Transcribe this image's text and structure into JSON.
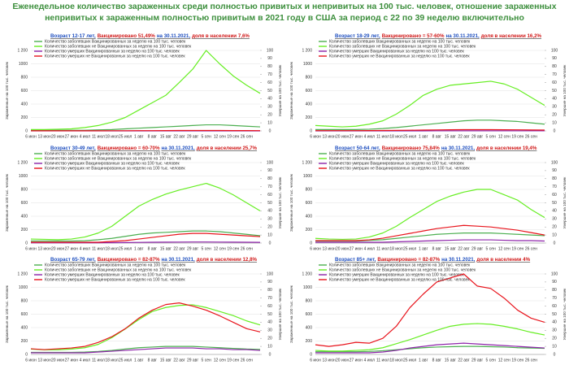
{
  "title": "Еженедельное количество зараженных среди полностью привитых и непривитых на 100 тыс. человек, отношение зараженных непривитых к зараженным полностью привитым в 2021 году в США за период с 22 по 39 неделю включительно",
  "chart_data": [
    {
      "type": "line",
      "subtitle": [
        {
          "text": "Возраст 12-17 лет,",
          "color": "#1f4fbf"
        },
        {
          "text": "Вакцинировано 51,49%",
          "color": "#d01818"
        },
        {
          "text": "на 30.11.2021,",
          "color": "#1f4fbf"
        },
        {
          "text": "доля в населении 7,6%",
          "color": "#d01818"
        }
      ],
      "ylabel": "Зараженные на 100 тыс. человек",
      "y2label": "Умершие на 100 тыс. человек",
      "categories": [
        "6 июн",
        "13 июн",
        "20 июн",
        "27 июн",
        "4 июл",
        "11 июл",
        "18 июл",
        "25 июл",
        "1 авг",
        "8 авг",
        "15 авг",
        "22 авг",
        "29 авг",
        "5 сен",
        "12 сен",
        "19 сен",
        "26 сен",
        null
      ],
      "ylim": [
        0,
        1200
      ],
      "yticks": [
        0,
        200,
        400,
        600,
        800,
        1000,
        {
          "value": 1200,
          "label": "1 200"
        }
      ],
      "y2lim": [
        0,
        100
      ],
      "y2ticks": [
        0,
        10,
        20,
        30,
        40,
        50,
        60,
        70,
        80,
        90,
        100
      ],
      "grid": true,
      "series": [
        {
          "name": "Количество заболевших Вакцинированных за неделю на 100 тыс. человек",
          "color": "#4caf50",
          "values": [
            10,
            10,
            10,
            10,
            10,
            15,
            20,
            30,
            40,
            50,
            60,
            70,
            80,
            90,
            90,
            80,
            70,
            60
          ]
        },
        {
          "name": "Количество заболевших не Вакцинированных за неделю на 100 тыс. человек",
          "color": "#66ee22",
          "values": [
            20,
            20,
            25,
            30,
            50,
            80,
            130,
            200,
            310,
            420,
            530,
            720,
            920,
            1200,
            1000,
            820,
            680,
            560
          ]
        },
        {
          "name": "Количество умерших Вакцинированных за неделю на 100 тыс. человек",
          "color": "#8e24aa",
          "axis": "y2",
          "values": [
            0,
            0,
            0,
            0,
            0,
            0,
            0,
            0,
            0,
            0,
            0,
            0,
            0,
            0,
            0,
            0,
            0,
            0
          ]
        },
        {
          "name": "Количество умерших не Вакцинированных за неделю на 100 тыс. человек",
          "color": "#e8141c",
          "axis": "y2",
          "values": [
            0.1,
            0.1,
            0.1,
            0.1,
            0.1,
            0.1,
            0.2,
            0.2,
            0.3,
            0.3,
            0.4,
            0.5,
            0.5,
            0.5,
            0.5,
            0.4,
            0.4,
            0.3
          ]
        }
      ]
    },
    {
      "type": "line",
      "subtitle": [
        {
          "text": "Возраст 18-29 лет,",
          "color": "#1f4fbf"
        },
        {
          "text": "Вакцинировано = 57-60%",
          "color": "#d01818"
        },
        {
          "text": "на 30.11.2021,",
          "color": "#1f4fbf"
        },
        {
          "text": "доля в населении 16,2%",
          "color": "#d01818"
        }
      ],
      "ylabel": "Зараженные на 100 тыс. человек",
      "y2label": "Умершие на 100 тыс. человек",
      "categories": [
        "6 июн",
        "13 июн",
        "20 июн",
        "27 июн",
        "4 июл",
        "11 июл",
        "18 июл",
        "25 июл",
        "1 авг",
        "8 авг",
        "15 авг",
        "22 авг",
        "29 авг",
        "5 сен",
        "12 сен",
        "19 сен",
        "26 сен",
        null
      ],
      "ylim": [
        0,
        1200
      ],
      "yticks": [
        0,
        200,
        400,
        600,
        800,
        1000,
        {
          "value": 1200,
          "label": "1 200"
        }
      ],
      "y2lim": [
        0,
        100
      ],
      "y2ticks": [
        0,
        10,
        20,
        30,
        40,
        50,
        60,
        70,
        80,
        90,
        100
      ],
      "grid": true,
      "series": [
        {
          "name": "Количество заболевших Вакцинированных за неделю на 100 тыс. человек",
          "color": "#4caf50",
          "values": [
            20,
            20,
            20,
            20,
            25,
            35,
            50,
            70,
            90,
            110,
            130,
            150,
            160,
            160,
            150,
            140,
            120,
            100
          ]
        },
        {
          "name": "Количество заболевших не Вакцинированных за неделю на 100 тыс. человек",
          "color": "#66ee22",
          "values": [
            80,
            70,
            60,
            70,
            100,
            150,
            250,
            380,
            530,
            620,
            680,
            700,
            720,
            740,
            700,
            620,
            500,
            380
          ]
        },
        {
          "name": "Количество умерших Вакцинированных за неделю на 100 тыс. человек",
          "color": "#8e24aa",
          "axis": "y2",
          "values": [
            0,
            0,
            0,
            0,
            0,
            0,
            0,
            0,
            0,
            0.1,
            0.1,
            0.1,
            0.1,
            0.1,
            0.1,
            0.1,
            0.1,
            0.1
          ]
        },
        {
          "name": "Количество умерших не Вакцинированных за неделю на 100 тыс. человек",
          "color": "#e8141c",
          "axis": "y2",
          "values": [
            0.3,
            0.3,
            0.3,
            0.3,
            0.4,
            0.5,
            0.6,
            0.8,
            1,
            1.2,
            1.4,
            1.5,
            1.5,
            1.5,
            1.4,
            1.3,
            1.1,
            1
          ]
        }
      ]
    },
    {
      "type": "line",
      "subtitle": [
        {
          "text": "Возраст 30-49 лет,",
          "color": "#1f4fbf"
        },
        {
          "text": "Вакцинировано = 60-70%",
          "color": "#d01818"
        },
        {
          "text": "на 30.11.2021,",
          "color": "#1f4fbf"
        },
        {
          "text": "доля в населении 25,7%",
          "color": "#d01818"
        }
      ],
      "ylabel": "Зараженные на 100 тыс. человек",
      "y2label": "Умершие на 100 тыс. человек",
      "categories": [
        "6 июн",
        "13 июн",
        "20 июн",
        "27 июн",
        "4 июл",
        "11 июл",
        "18 июл",
        "25 июл",
        "1 авг",
        "8 авг",
        "15 авг",
        "22 авг",
        "29 авг",
        "5 сен",
        "12 сен",
        "19 сен",
        "26 сен",
        null
      ],
      "ylim": [
        0,
        1200
      ],
      "yticks": [
        0,
        200,
        400,
        600,
        800,
        1000,
        {
          "value": 1200,
          "label": "1 200"
        }
      ],
      "y2lim": [
        0,
        100
      ],
      "y2ticks": [
        0,
        10,
        20,
        30,
        40,
        50,
        60,
        70,
        80,
        90,
        100
      ],
      "grid": true,
      "series": [
        {
          "name": "Количество заболевших Вакцинированных за неделю на 100 тыс. человек",
          "color": "#4caf50",
          "values": [
            30,
            30,
            30,
            30,
            35,
            50,
            70,
            100,
            130,
            150,
            160,
            170,
            180,
            180,
            170,
            150,
            130,
            110
          ]
        },
        {
          "name": "Количество заболевших не Вакцинированных за неделю на 100 тыс. человек",
          "color": "#66ee22",
          "values": [
            60,
            55,
            50,
            60,
            90,
            150,
            250,
            400,
            550,
            650,
            730,
            790,
            840,
            890,
            820,
            720,
            600,
            480
          ]
        },
        {
          "name": "Количество умерших Вакцинированных за неделю на 100 тыс. человек",
          "color": "#8e24aa",
          "axis": "y2",
          "values": [
            0.3,
            0.3,
            0.3,
            0.3,
            0.3,
            0.4,
            0.5,
            0.6,
            0.8,
            1,
            1.1,
            1.2,
            1.3,
            1.3,
            1.2,
            1.1,
            1,
            0.9
          ]
        },
        {
          "name": "Количество умерших не Вакцинированных за неделю на 100 тыс. человек",
          "color": "#e8141c",
          "axis": "y2",
          "values": [
            1,
            1,
            1,
            1,
            1,
            1,
            2,
            3,
            5,
            7,
            9,
            11,
            12,
            12,
            11,
            10,
            9,
            8
          ]
        }
      ]
    },
    {
      "type": "line",
      "subtitle": [
        {
          "text": "Возраст 50-64 лет,",
          "color": "#1f4fbf"
        },
        {
          "text": "Вакцинировано 75,84%",
          "color": "#d01818"
        },
        {
          "text": "на 30.11.2021,",
          "color": "#1f4fbf"
        },
        {
          "text": "доля в населении 19,4%",
          "color": "#d01818"
        }
      ],
      "ylabel": "Зараженные на 100 тыс. человек",
      "y2label": "Умершие на 100 тыс. человек",
      "categories": [
        "6 июн",
        "13 июн",
        "20 июн",
        "27 июн",
        "4 июл",
        "11 июл",
        "18 июл",
        "25 июл",
        "1 авг",
        "8 авг",
        "15 авг",
        "22 авг",
        "29 авг",
        "5 сен",
        "12 сен",
        "19 сен",
        "26 сен",
        null
      ],
      "ylim": [
        0,
        1200
      ],
      "yticks": [
        0,
        200,
        400,
        600,
        800,
        1000,
        {
          "value": 1200,
          "label": "1 200"
        }
      ],
      "y2lim": [
        0,
        100
      ],
      "y2ticks": [
        0,
        10,
        20,
        30,
        40,
        50,
        60,
        70,
        80,
        90,
        100
      ],
      "grid": true,
      "series": [
        {
          "name": "Количество заболевших Вакцинированных за неделю на 100 тыс. человек",
          "color": "#4caf50",
          "values": [
            30,
            30,
            30,
            30,
            40,
            50,
            70,
            90,
            110,
            130,
            140,
            150,
            150,
            150,
            140,
            130,
            120,
            110
          ]
        },
        {
          "name": "Количество заболевших не Вакцинированных за неделю на 100 тыс. человек",
          "color": "#66ee22",
          "values": [
            70,
            60,
            55,
            60,
            90,
            150,
            250,
            380,
            500,
            620,
            700,
            760,
            800,
            800,
            720,
            640,
            500,
            380
          ]
        },
        {
          "name": "Количество умерших Вакцинированных за неделю на 100 тыс. человек",
          "color": "#8e24aa",
          "axis": "y2",
          "values": [
            1,
            1,
            1,
            1,
            1,
            1,
            1.5,
            2,
            2.5,
            3,
            3.5,
            4,
            4,
            4,
            3.5,
            3,
            3,
            2.5
          ]
        },
        {
          "name": "Количество умерших не Вакцинированных за неделю на 100 тыс. человек",
          "color": "#e8141c",
          "axis": "y2",
          "values": [
            3,
            3,
            3,
            3,
            4,
            6,
            9,
            12,
            15,
            18,
            20,
            22,
            21,
            20,
            18,
            16,
            13,
            10
          ]
        }
      ]
    },
    {
      "type": "line",
      "subtitle": [
        {
          "text": "Возраст 65-79 лет,",
          "color": "#1f4fbf"
        },
        {
          "text": "Вакцинировано = 82-87%",
          "color": "#d01818"
        },
        {
          "text": "на 30.11.2021,",
          "color": "#1f4fbf"
        },
        {
          "text": "доля в населении 12,8%",
          "color": "#d01818"
        }
      ],
      "ylabel": "Зараженные на 100 тыс. человек",
      "y2label": "Умершие на 100 тыс. человек",
      "categories": [
        "6 июн",
        "13 июн",
        "20 июн",
        "27 июн",
        "4 июл",
        "11 июл",
        "18 июл",
        "25 июл",
        "1 авг",
        "8 авг",
        "15 авг",
        "22 авг",
        "29 авг",
        "5 сен",
        "12 сен",
        "19 сен",
        "26 сен",
        null
      ],
      "ylim": [
        0,
        1200
      ],
      "yticks": [
        0,
        200,
        400,
        600,
        800,
        1000,
        {
          "value": 1200,
          "label": "1 200"
        }
      ],
      "y2lim": [
        0,
        100
      ],
      "y2ticks": [
        0,
        10,
        20,
        30,
        40,
        50,
        60,
        70,
        80,
        90,
        100
      ],
      "grid": true,
      "series": [
        {
          "name": "Количество заболевших Вакцинированных за неделю на 100 тыс. человек",
          "color": "#4caf50",
          "values": [
            30,
            30,
            30,
            30,
            35,
            45,
            60,
            80,
            100,
            110,
            120,
            120,
            120,
            110,
            100,
            90,
            80,
            75
          ]
        },
        {
          "name": "Количество заболевших не Вакцинированных за неделю на 100 тыс. человек",
          "color": "#66ee22",
          "values": [
            80,
            70,
            70,
            80,
            100,
            150,
            250,
            380,
            520,
            640,
            700,
            730,
            740,
            700,
            640,
            580,
            500,
            440
          ]
        },
        {
          "name": "Количество умерших Вакцинированных за неделю на 100 тыс. человек",
          "color": "#8e24aa",
          "axis": "y2",
          "values": [
            2,
            2,
            2,
            2,
            2,
            3,
            4,
            5,
            6,
            7,
            8,
            8,
            8,
            7,
            7,
            6,
            6,
            5
          ]
        },
        {
          "name": "Количество умерших не Вакцинированных за неделю на 100 тыс. человек",
          "color": "#e8141c",
          "axis": "y2",
          "values": [
            7,
            6,
            7,
            8,
            10,
            15,
            22,
            32,
            45,
            55,
            62,
            64,
            60,
            55,
            48,
            40,
            32,
            28
          ]
        }
      ]
    },
    {
      "type": "line",
      "subtitle": [
        {
          "text": "Возраст 85+ лет,",
          "color": "#1f4fbf"
        },
        {
          "text": "Вакцинировано = 82-87%",
          "color": "#d01818"
        },
        {
          "text": "на 30.11.2021,",
          "color": "#1f4fbf"
        },
        {
          "text": "доля в населении 4%",
          "color": "#d01818"
        }
      ],
      "ylabel": "Зараженные на 100 тыс. человек",
      "y2label": "Умершие на 100 тыс. человек",
      "categories": [
        "6 июн",
        "13 июн",
        "20 июн",
        "27 июн",
        "4 июл",
        "11 июл",
        "18 июл",
        "25 июл",
        "1 авг",
        "8 авг",
        "15 авг",
        "22 авг",
        "29 авг",
        "5 сен",
        "12 сен",
        "19 сен",
        "26 сен",
        null
      ],
      "ylim": [
        0,
        1200
      ],
      "yticks": [
        0,
        200,
        400,
        600,
        800,
        1000,
        {
          "value": 1200,
          "label": "1 200"
        }
      ],
      "y2lim": [
        0,
        100
      ],
      "y2ticks": [
        0,
        10,
        20,
        30,
        40,
        50,
        60,
        70,
        80,
        90,
        100
      ],
      "grid": true,
      "series": [
        {
          "name": "Количество заболевших Вакцинированных за неделю на 100 тыс. человек",
          "color": "#4caf50",
          "values": [
            40,
            40,
            40,
            40,
            45,
            55,
            70,
            85,
            100,
            110,
            115,
            120,
            120,
            115,
            110,
            100,
            95,
            90
          ]
        },
        {
          "name": "Количество заболевших не Вакцинированных за неделю на 100 тыс. человек",
          "color": "#66ee22",
          "values": [
            60,
            50,
            50,
            60,
            70,
            100,
            160,
            220,
            290,
            360,
            420,
            450,
            460,
            450,
            420,
            380,
            330,
            290
          ]
        },
        {
          "name": "Количество умерших Вакцинированных за неделю на 100 тыс. человек",
          "color": "#8e24aa",
          "axis": "y2",
          "values": [
            2,
            2,
            2,
            2,
            2,
            3,
            5,
            8,
            10,
            12,
            13,
            14,
            13,
            12,
            11,
            10,
            9,
            8
          ]
        },
        {
          "name": "Количество умерших не Вакцинированных за неделю на 100 тыс. человек",
          "color": "#e8141c",
          "axis": "y2",
          "values": [
            12,
            10,
            12,
            15,
            14,
            20,
            35,
            58,
            75,
            90,
            95,
            100,
            85,
            82,
            70,
            55,
            45,
            40
          ]
        }
      ]
    }
  ]
}
